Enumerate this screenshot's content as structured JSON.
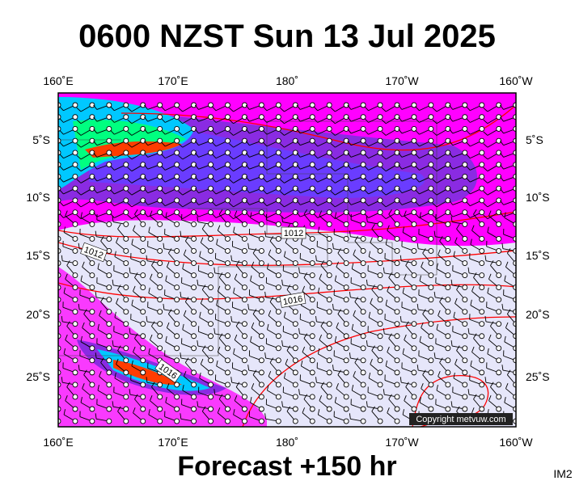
{
  "title": "0600 NZST Sun 13 Jul 2025",
  "longitude_labels": [
    "160˚E",
    "170˚E",
    "180˚",
    "170˚W",
    "160˚W"
  ],
  "latitude_labels": [
    "5˚S",
    "10˚S",
    "15˚S",
    "20˚S",
    "25˚S"
  ],
  "isobar_labels": [
    "1012",
    "1012",
    "1016",
    "1016"
  ],
  "footer": "Forecast +150 hr",
  "copyright": "Copyright metvuw.com",
  "image_id": "IM2"
}
